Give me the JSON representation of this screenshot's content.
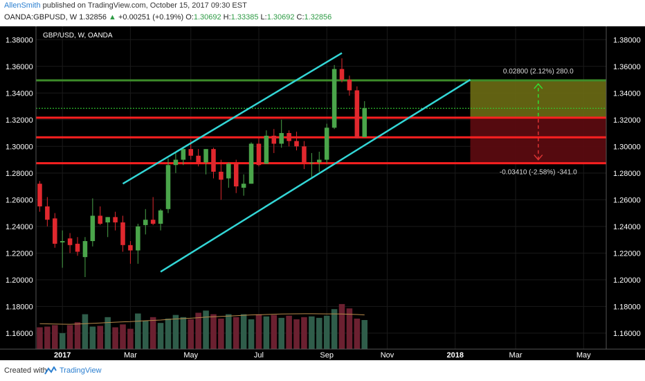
{
  "header": {
    "author": "AllenSmith",
    "published_text": "published on TradingView.com, October 15, 2017 09:30 EST",
    "symbol": "OANDA:GBPUSD, W",
    "last": "1.32856",
    "change_arrow": "▲",
    "change": "+0.00251 (+0.19%)",
    "open_label": "O:",
    "open": "1.30692",
    "high_label": "H:",
    "high": "1.33385",
    "low_label": "L:",
    "low": "1.30692",
    "close_label": "C:",
    "close": "1.32856"
  },
  "footer": {
    "created_with": "Created with",
    "brand": "TradingView",
    "logo_icon": "tradingview-logo-icon"
  },
  "colors": {
    "background": "#000000",
    "up": "#4aa54a",
    "down": "#e0282e",
    "channel": "#33d6d6",
    "level": "#ff2020",
    "resistance": "#3d8c2a",
    "dotted": "#33cc33",
    "vol_up": "#2f5d4a",
    "vol_down": "#6b2030",
    "vol_ma": "#b8894a"
  },
  "chart_data": {
    "type": "candlestick",
    "title": "GBP/USD, W, OANDA",
    "y_ticks": [
      "1.38000",
      "1.36000",
      "1.34000",
      "1.32000",
      "1.30000",
      "1.28000",
      "1.26000",
      "1.24000",
      "1.22000",
      "1.20000",
      "1.18000",
      "1.16000"
    ],
    "ylim": [
      1.148,
      1.39
    ],
    "x_labels": [
      {
        "text": "2017",
        "bar": 3,
        "bold": true
      },
      {
        "text": "Mar",
        "bar": 12,
        "bold": false
      },
      {
        "text": "May",
        "bar": 20,
        "bold": false
      },
      {
        "text": "Jul",
        "bar": 29,
        "bold": false
      },
      {
        "text": "Sep",
        "bar": 38,
        "bold": false
      },
      {
        "text": "Nov",
        "bar": 46,
        "bold": false
      },
      {
        "text": "2018",
        "bar": 55,
        "bold": true
      },
      {
        "text": "Mar",
        "bar": 63,
        "bold": false
      },
      {
        "text": "May",
        "bar": 72,
        "bold": false
      }
    ],
    "xlim": [
      -0.5,
      75
    ],
    "candles": [
      {
        "o": 1.272,
        "h": 1.274,
        "l": 1.251,
        "c": 1.255
      },
      {
        "o": 1.255,
        "h": 1.262,
        "l": 1.24,
        "c": 1.245
      },
      {
        "o": 1.246,
        "h": 1.25,
        "l": 1.224,
        "c": 1.227
      },
      {
        "o": 1.228,
        "h": 1.237,
        "l": 1.209,
        "c": 1.229
      },
      {
        "o": 1.231,
        "h": 1.235,
        "l": 1.22,
        "c": 1.226
      },
      {
        "o": 1.227,
        "h": 1.232,
        "l": 1.218,
        "c": 1.221
      },
      {
        "o": 1.217,
        "h": 1.232,
        "l": 1.202,
        "c": 1.229
      },
      {
        "o": 1.229,
        "h": 1.261,
        "l": 1.225,
        "c": 1.248
      },
      {
        "o": 1.248,
        "h": 1.255,
        "l": 1.241,
        "c": 1.242
      },
      {
        "o": 1.243,
        "h": 1.247,
        "l": 1.232,
        "c": 1.247
      },
      {
        "o": 1.247,
        "h": 1.251,
        "l": 1.237,
        "c": 1.243
      },
      {
        "o": 1.243,
        "h": 1.248,
        "l": 1.221,
        "c": 1.226
      },
      {
        "o": 1.226,
        "h": 1.229,
        "l": 1.212,
        "c": 1.222
      },
      {
        "o": 1.222,
        "h": 1.242,
        "l": 1.212,
        "c": 1.24
      },
      {
        "o": 1.241,
        "h": 1.253,
        "l": 1.234,
        "c": 1.245
      },
      {
        "o": 1.245,
        "h": 1.262,
        "l": 1.241,
        "c": 1.242
      },
      {
        "o": 1.242,
        "h": 1.253,
        "l": 1.237,
        "c": 1.252
      },
      {
        "o": 1.253,
        "h": 1.291,
        "l": 1.25,
        "c": 1.286
      },
      {
        "o": 1.286,
        "h": 1.295,
        "l": 1.28,
        "c": 1.29
      },
      {
        "o": 1.29,
        "h": 1.299,
        "l": 1.286,
        "c": 1.298
      },
      {
        "o": 1.298,
        "h": 1.305,
        "l": 1.29,
        "c": 1.293
      },
      {
        "o": 1.293,
        "h": 1.298,
        "l": 1.285,
        "c": 1.288
      },
      {
        "o": 1.288,
        "h": 1.298,
        "l": 1.279,
        "c": 1.298
      },
      {
        "o": 1.298,
        "h": 1.299,
        "l": 1.276,
        "c": 1.281
      },
      {
        "o": 1.281,
        "h": 1.29,
        "l": 1.26,
        "c": 1.275
      },
      {
        "o": 1.276,
        "h": 1.288,
        "l": 1.269,
        "c": 1.287
      },
      {
        "o": 1.287,
        "h": 1.29,
        "l": 1.265,
        "c": 1.27
      },
      {
        "o": 1.269,
        "h": 1.279,
        "l": 1.263,
        "c": 1.272
      },
      {
        "o": 1.272,
        "h": 1.303,
        "l": 1.272,
        "c": 1.302
      },
      {
        "o": 1.302,
        "h": 1.306,
        "l": 1.285,
        "c": 1.286
      },
      {
        "o": 1.287,
        "h": 1.312,
        "l": 1.287,
        "c": 1.308
      },
      {
        "o": 1.308,
        "h": 1.313,
        "l": 1.295,
        "c": 1.302
      },
      {
        "o": 1.302,
        "h": 1.32,
        "l": 1.299,
        "c": 1.31
      },
      {
        "o": 1.31,
        "h": 1.312,
        "l": 1.3,
        "c": 1.304
      },
      {
        "o": 1.304,
        "h": 1.311,
        "l": 1.297,
        "c": 1.3
      },
      {
        "o": 1.3,
        "h": 1.304,
        "l": 1.283,
        "c": 1.288
      },
      {
        "o": 1.288,
        "h": 1.295,
        "l": 1.277,
        "c": 1.288
      },
      {
        "o": 1.288,
        "h": 1.296,
        "l": 1.281,
        "c": 1.29
      },
      {
        "o": 1.29,
        "h": 1.317,
        "l": 1.287,
        "c": 1.314
      },
      {
        "o": 1.314,
        "h": 1.361,
        "l": 1.313,
        "c": 1.358
      },
      {
        "o": 1.358,
        "h": 1.366,
        "l": 1.348,
        "c": 1.35
      },
      {
        "o": 1.35,
        "h": 1.353,
        "l": 1.338,
        "c": 1.342
      },
      {
        "o": 1.342,
        "h": 1.345,
        "l": 1.306,
        "c": 1.306
      },
      {
        "o": 1.3069,
        "h": 1.3339,
        "l": 1.3069,
        "c": 1.3286
      }
    ],
    "volume_ylim": [
      0,
      100
    ],
    "volumes": [
      30,
      31,
      33,
      22,
      33,
      37,
      48,
      31,
      32,
      44,
      30,
      34,
      28,
      49,
      39,
      44,
      36,
      42,
      47,
      44,
      41,
      50,
      53,
      48,
      42,
      48,
      44,
      48,
      41,
      48,
      45,
      47,
      43,
      46,
      41,
      44,
      45,
      43,
      46,
      55,
      62,
      56,
      42,
      40
    ],
    "volume_ma": [
      35,
      34.8,
      34.5,
      34.3,
      34.2,
      34.5,
      35,
      35.5,
      36,
      36.5,
      37,
      37.5,
      37.8,
      38.5,
      39,
      39.5,
      40,
      40.8,
      41.5,
      42,
      42.5,
      43.2,
      44,
      44.5,
      45,
      45.5,
      46,
      46.5,
      47,
      47.3,
      47.6,
      48,
      48.3,
      48.5,
      48.6,
      48.7,
      48.7,
      48.6,
      48.5,
      48.5,
      48.3,
      48,
      47.6,
      47
    ],
    "levels": [
      {
        "price": 1.3495,
        "label": "1.34950",
        "color": "resistance"
      },
      {
        "price": 1.3215,
        "label": "1.32150",
        "color": "level"
      },
      {
        "price": 1.3068,
        "label": "1.30680",
        "color": "level"
      },
      {
        "price": 1.2874,
        "label": "1.28740",
        "color": "level"
      }
    ],
    "dotted_level": 1.32856,
    "channel_lines": [
      {
        "from": {
          "bar": 11,
          "price": 1.272
        },
        "to": {
          "bar": 40,
          "price": 1.37
        }
      },
      {
        "from": {
          "bar": 16,
          "price": 1.206
        },
        "to": {
          "bar": 57,
          "price": 1.35
        }
      }
    ],
    "position": {
      "start_bar": 57,
      "end_bar": 75,
      "entry": 1.3215,
      "target": 1.3495,
      "stop": 1.2874,
      "target_label": "0.02800 (2.12%) 280.0",
      "stop_label": "-0.03410 (-2.58%) -341.0"
    }
  }
}
